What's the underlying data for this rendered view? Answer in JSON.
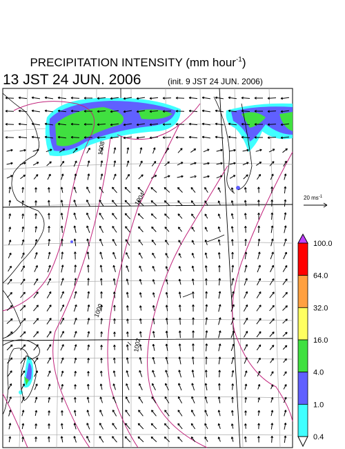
{
  "header": {
    "title": {
      "text": "PRECIPITATION INTENSITY (mm hour",
      "superscript": "-1",
      "suffix": ")"
    },
    "valid_time": "13 JST 24 JUN. 2006",
    "init_time": "(init. 9 JST 24 JUN. 2006)"
  },
  "wind_reference": {
    "text": "20 ms",
    "superscript": "-1"
  },
  "colorbar": {
    "labels": [
      "100.0",
      "64.0",
      "32.0",
      "16.0",
      "4.0",
      "1.0",
      "0.4"
    ],
    "colors": [
      "#ff0000",
      "#ffa040",
      "#ffff60",
      "#40e040",
      "#6060ff",
      "#40ffff"
    ],
    "over_color": "#c040ff",
    "under_color": "#ffffff"
  },
  "contour_labels": [
    "1008",
    "1004",
    "1002",
    "1000"
  ]
}
